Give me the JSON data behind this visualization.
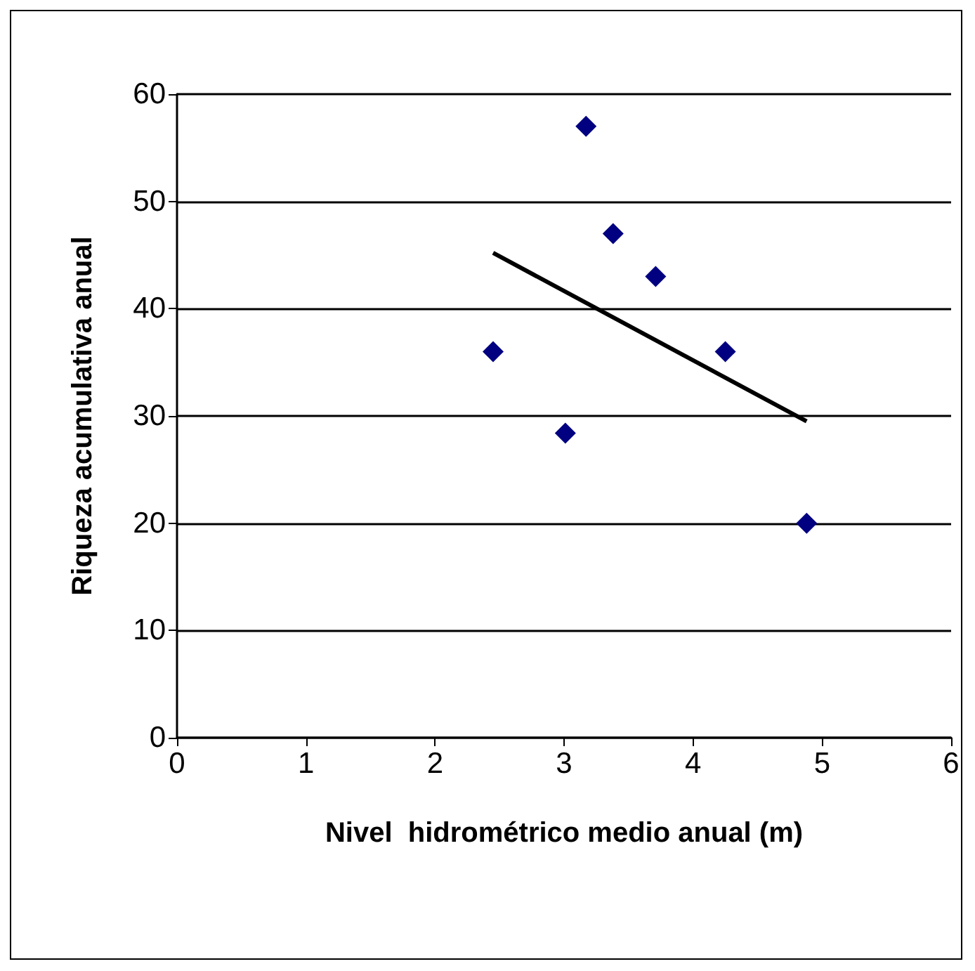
{
  "chart_data": {
    "type": "scatter",
    "xlabel": "Nivel  hidrométrico medio anual (m)",
    "ylabel": "Riqueza acumulativa anual",
    "xlim": [
      0,
      6
    ],
    "xticks": [
      0,
      1,
      2,
      3,
      4,
      5,
      6
    ],
    "ylim": [
      0,
      60
    ],
    "yticks": [
      0,
      10,
      20,
      30,
      40,
      50,
      60
    ],
    "grid": "y",
    "marker": "diamond",
    "series": [
      {
        "color": "#000080",
        "x": [
          2.45,
          3.01,
          3.17,
          3.38,
          3.71,
          4.25,
          4.88
        ],
        "values": [
          36,
          28.4,
          57,
          47,
          43,
          36,
          20
        ]
      },
      {
        "type": "line",
        "color": "#000000",
        "marker": "none",
        "x": [
          2.45,
          4.88
        ],
        "values": [
          45.2,
          29.5
        ]
      }
    ]
  }
}
